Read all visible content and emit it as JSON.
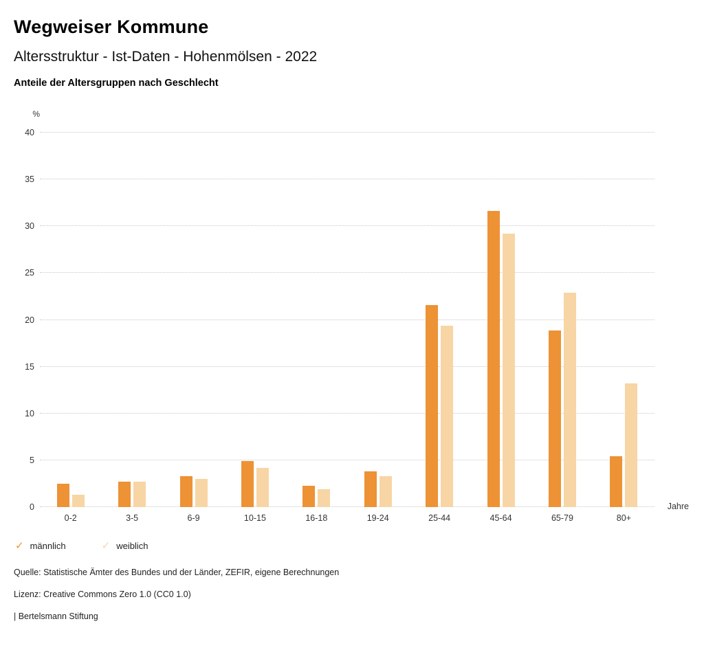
{
  "header": {
    "title": "Wegweiser Kommune",
    "subtitle": "Altersstruktur - Ist-Daten - Hohenmölsen - 2022",
    "heading": "Anteile der Altersgruppen nach Geschlecht"
  },
  "chart_data": {
    "type": "bar",
    "title": "Anteile der Altersgruppen nach Geschlecht",
    "y_unit": "%",
    "x_unit": "Jahre",
    "ylim": [
      0,
      40
    ],
    "ytick_step": 5,
    "grid": true,
    "gridline_color": "#c8c8c8",
    "legend_position": "bottom",
    "legend_marker": "✓",
    "categories": [
      "0-2",
      "3-5",
      "6-9",
      "10-15",
      "16-18",
      "19-24",
      "25-44",
      "45-64",
      "65-79",
      "80+"
    ],
    "series": [
      {
        "name": "männlich",
        "color": "#ED9235",
        "values": [
          2.5,
          2.7,
          3.3,
          4.9,
          2.3,
          3.8,
          21.6,
          31.6,
          18.9,
          5.4
        ]
      },
      {
        "name": "weiblich",
        "color": "#F8D5A5",
        "values": [
          1.3,
          2.7,
          3.0,
          4.2,
          1.9,
          3.3,
          19.4,
          29.2,
          22.9,
          13.2
        ]
      }
    ]
  },
  "footer": {
    "source": "Quelle: Statistische Ämter des Bundes und der Länder, ZEFIR, eigene Berechnungen",
    "license": "Lizenz: Creative Commons Zero 1.0 (CC0 1.0)",
    "attribution": "| Bertelsmann Stiftung"
  }
}
